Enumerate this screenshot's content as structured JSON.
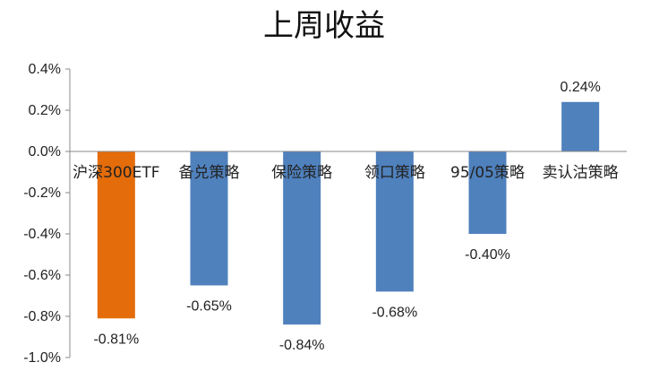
{
  "chart_data": {
    "type": "bar",
    "title": "上周收益",
    "xlabel": "",
    "ylabel": "",
    "ylim": [
      -1.0,
      0.4
    ],
    "y_ticks": [
      "0.4%",
      "0.2%",
      "0.0%",
      "-0.2%",
      "-0.4%",
      "-0.6%",
      "-0.8%",
      "-1.0%"
    ],
    "y_tick_values": [
      0.4,
      0.2,
      0.0,
      -0.2,
      -0.4,
      -0.6,
      -0.8,
      -1.0
    ],
    "categories": [
      "沪深300ETF",
      "备兑策略",
      "保险策略",
      "领口策略",
      "95/05策略",
      "卖认沽策略"
    ],
    "values": [
      -0.81,
      -0.65,
      -0.84,
      -0.68,
      -0.4,
      0.24
    ],
    "data_labels": [
      "-0.81%",
      "-0.65%",
      "-0.84%",
      "-0.68%",
      "-0.40%",
      "0.24%"
    ],
    "bar_colors": [
      "#E46C0A",
      "#4F81BD",
      "#4F81BD",
      "#4F81BD",
      "#4F81BD",
      "#4F81BD"
    ],
    "grid": false,
    "legend": "none"
  }
}
